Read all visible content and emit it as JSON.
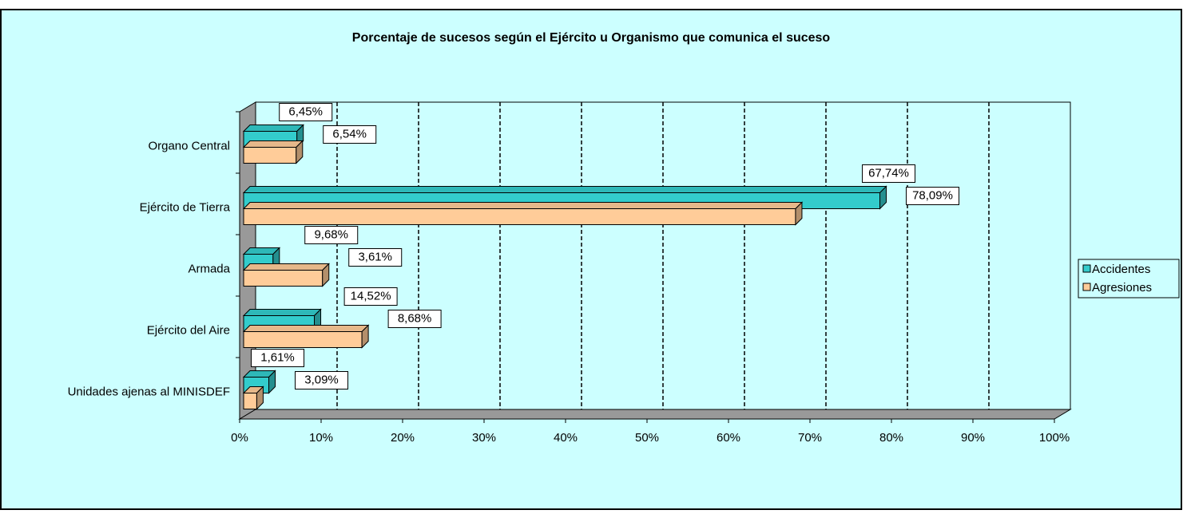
{
  "chart_data": {
    "type": "bar",
    "orientation": "horizontal",
    "title": "Porcentaje de sucesos según el Ejército u Organismo que comunica el suceso",
    "categories": [
      "Organo Central",
      "Ejército de Tierra",
      "Armada",
      "Ejército del Aire",
      "Unidades ajenas al MINISDEF"
    ],
    "series": [
      {
        "name": "Accidentes",
        "color": "#33cccc",
        "values": [
          6.54,
          78.09,
          3.61,
          8.68,
          3.09
        ],
        "value_labels": [
          "6,54%",
          "78,09%",
          "3,61%",
          "8,68%",
          "3,09%"
        ]
      },
      {
        "name": "Agresiones",
        "color": "#ffcc99",
        "values": [
          6.45,
          67.74,
          9.68,
          14.52,
          1.61
        ],
        "value_labels": [
          "6,45%",
          "67,74%",
          "9,68%",
          "14,52%",
          "1,61%"
        ]
      }
    ],
    "xlim": [
      0,
      100
    ],
    "xticks": [
      {
        "value": 0,
        "label": "0%"
      },
      {
        "value": 10,
        "label": "10%"
      },
      {
        "value": 20,
        "label": "20%"
      },
      {
        "value": 30,
        "label": "30%"
      },
      {
        "value": 40,
        "label": "40%"
      },
      {
        "value": 50,
        "label": "50%"
      },
      {
        "value": 60,
        "label": "60%"
      },
      {
        "value": 70,
        "label": "70%"
      },
      {
        "value": 80,
        "label": "80%"
      },
      {
        "value": 90,
        "label": "90%"
      },
      {
        "value": 100,
        "label": "100%"
      }
    ],
    "grid": true,
    "legend": "right"
  }
}
